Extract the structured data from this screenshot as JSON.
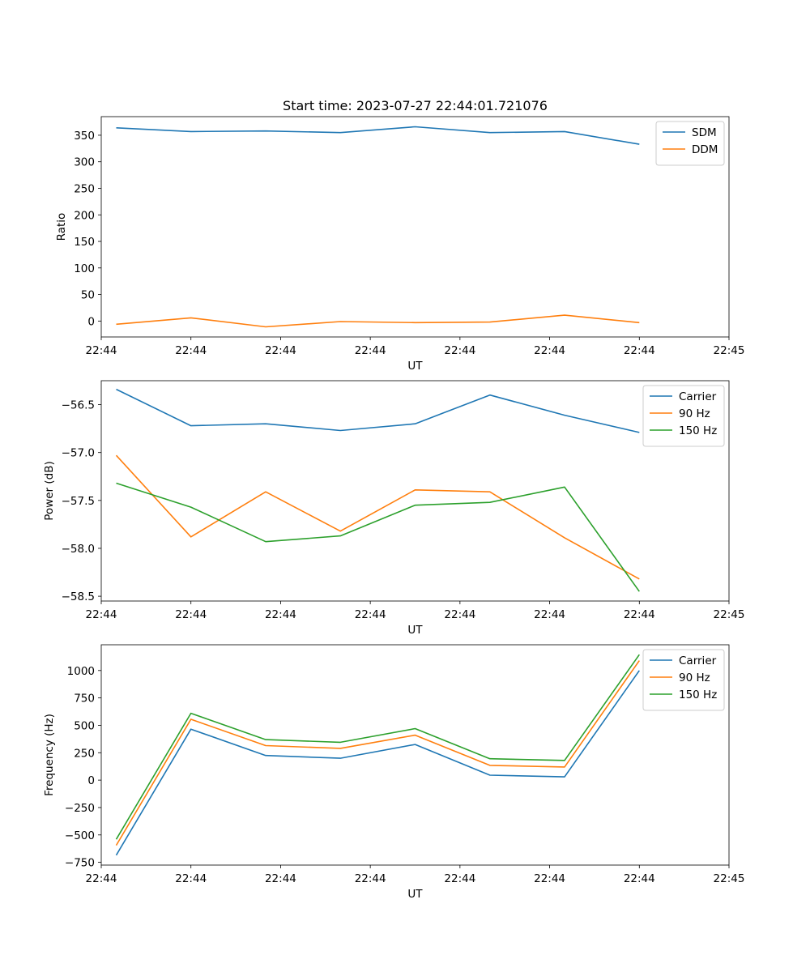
{
  "chart_data": [
    {
      "type": "line",
      "title": "Start time: 2023-07-27 22:44:01.721076",
      "xlabel": "UT",
      "ylabel": "Ratio",
      "x": [
        1,
        2,
        3,
        4,
        5,
        6,
        7,
        8
      ],
      "xlim": [
        0.8,
        9.2
      ],
      "xtick_values": [
        0.8,
        2.0,
        3.2,
        4.4,
        5.6,
        6.8,
        8.0,
        9.2
      ],
      "xtick_labels": [
        "22:44",
        "22:44",
        "22:44",
        "22:44",
        "22:44",
        "22:44",
        "22:44",
        "22:45"
      ],
      "ylim": [
        -30,
        385
      ],
      "yticks": [
        0,
        50,
        100,
        150,
        200,
        250,
        300,
        350
      ],
      "ytick_labels": [
        "0",
        "50",
        "100",
        "150",
        "200",
        "250",
        "300",
        "350"
      ],
      "legend_position": "top-right",
      "series": [
        {
          "name": "SDM",
          "color": "#1f77b4",
          "values": [
            364,
            357,
            358,
            355,
            366,
            355,
            357,
            333
          ]
        },
        {
          "name": "DDM",
          "color": "#ff7f0e",
          "values": [
            -6,
            6,
            -11,
            -1,
            -3,
            -2,
            11,
            -3
          ]
        }
      ]
    },
    {
      "type": "line",
      "title": "",
      "xlabel": "UT",
      "ylabel": "Power (dB)",
      "x": [
        1,
        2,
        3,
        4,
        5,
        6,
        7,
        8
      ],
      "xlim": [
        0.8,
        9.2
      ],
      "xtick_values": [
        0.8,
        2.0,
        3.2,
        4.4,
        5.6,
        6.8,
        8.0,
        9.2
      ],
      "xtick_labels": [
        "22:44",
        "22:44",
        "22:44",
        "22:44",
        "22:44",
        "22:44",
        "22:44",
        "22:45"
      ],
      "ylim": [
        -58.55,
        -56.25
      ],
      "yticks": [
        -56.5,
        -57.0,
        -57.5,
        -58.0,
        -58.5
      ],
      "ytick_labels": [
        "−56.5",
        "−57.0",
        "−57.5",
        "−58.0",
        "−58.5"
      ],
      "legend_position": "top-right",
      "series": [
        {
          "name": "Carrier",
          "color": "#1f77b4",
          "values": [
            -56.34,
            -56.72,
            -56.7,
            -56.77,
            -56.7,
            -56.4,
            -56.61,
            -56.79
          ]
        },
        {
          "name": "90 Hz",
          "color": "#ff7f0e",
          "values": [
            -57.03,
            -57.88,
            -57.41,
            -57.82,
            -57.39,
            -57.41,
            -57.89,
            -58.32
          ]
        },
        {
          "name": "150 Hz",
          "color": "#2ca02c",
          "values": [
            -57.32,
            -57.57,
            -57.93,
            -57.87,
            -57.55,
            -57.52,
            -57.36,
            -58.45
          ]
        }
      ]
    },
    {
      "type": "line",
      "title": "",
      "xlabel": "UT",
      "ylabel": "Frequency (Hz)",
      "x": [
        1,
        2,
        3,
        4,
        5,
        6,
        7,
        8
      ],
      "xlim": [
        0.8,
        9.2
      ],
      "xtick_values": [
        0.8,
        2.0,
        3.2,
        4.4,
        5.6,
        6.8,
        8.0,
        9.2
      ],
      "xtick_labels": [
        "22:44",
        "22:44",
        "22:44",
        "22:44",
        "22:44",
        "22:44",
        "22:44",
        "22:45"
      ],
      "ylim": [
        -775,
        1235
      ],
      "yticks": [
        -750,
        -500,
        -250,
        0,
        250,
        500,
        750,
        1000
      ],
      "ytick_labels": [
        "−750",
        "−500",
        "−250",
        "0",
        "250",
        "500",
        "750",
        "1000"
      ],
      "legend_position": "top-right",
      "series": [
        {
          "name": "Carrier",
          "color": "#1f77b4",
          "values": [
            -685,
            465,
            225,
            200,
            325,
            45,
            30,
            1000
          ]
        },
        {
          "name": "90 Hz",
          "color": "#ff7f0e",
          "values": [
            -595,
            555,
            315,
            290,
            410,
            135,
            120,
            1090
          ]
        },
        {
          "name": "150 Hz",
          "color": "#2ca02c",
          "values": [
            -540,
            610,
            370,
            345,
            470,
            195,
            180,
            1145
          ]
        }
      ]
    }
  ]
}
